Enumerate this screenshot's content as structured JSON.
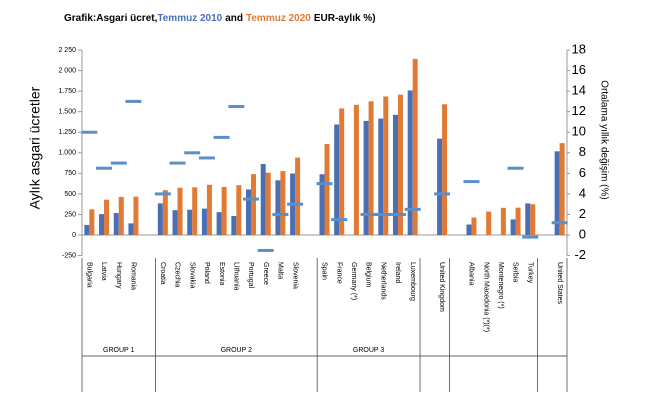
{
  "chart_data": {
    "type": "bar",
    "title_start": "Grafik:Asgari ücret,",
    "title_join": "and",
    "title_end": "EUR-aylık %)",
    "y_label": "Aylık asgari ücretler",
    "y2_label": "Ortalama yıllık değişim (%)",
    "categories": [
      "Bulgaria",
      "Latvia",
      "Hungary",
      "Romania",
      null,
      "Croatia",
      "Czechia",
      "Slovakia",
      "Poland",
      "Estonia",
      "Lithuania",
      "Portugal",
      "Greece",
      "Malta",
      "Slovenia",
      null,
      "Spain",
      "France",
      "Germany (*)",
      "Belgium",
      "Netherlands",
      "Ireland",
      "Luxembourg",
      null,
      "United Kingdom",
      null,
      "Albania",
      "North Macedonia (*)(*)",
      "Montenegro (*)",
      "Serbia",
      "Turkey",
      null,
      "United States"
    ],
    "groups": [
      "GROUP 1",
      "GROUP 2",
      "GROUP 3"
    ],
    "series": [
      {
        "name": "Temmuz 2010",
        "color": "#4a6fb5",
        "style": "bar",
        "values": [
          123,
          254,
          268,
          142,
          null,
          385,
          302,
          308,
          321,
          278,
          232,
          554,
          863,
          665,
          748,
          null,
          739,
          1344,
          null,
          1388,
          1416,
          1462,
          1758,
          null,
          1172,
          null,
          128,
          null,
          null,
          190,
          385,
          null,
          1018
        ]
      },
      {
        "name": "Temmuz 2020",
        "color": "#e07a35",
        "style": "bar",
        "values": [
          312,
          430,
          464,
          466,
          null,
          546,
          575,
          580,
          611,
          584,
          607,
          741,
          758,
          777,
          941,
          null,
          1108,
          1539,
          1584,
          1626,
          1685,
          1707,
          2142,
          null,
          1590,
          null,
          213,
          286,
          331,
          333,
          375,
          null,
          1118
        ]
      },
      {
        "color": "#5b8fc9",
        "style": "dash",
        "axis": "y2",
        "values": [
          10,
          6.5,
          7,
          13,
          null,
          4,
          7,
          8,
          7.5,
          9.5,
          12.5,
          3.5,
          -1.5,
          2,
          3,
          null,
          5,
          1.5,
          null,
          2,
          2,
          2,
          2.5,
          null,
          4,
          null,
          5.2,
          null,
          null,
          6.5,
          -0.2,
          null,
          1.2
        ]
      }
    ],
    "ylim": [
      -250,
      2250
    ],
    "yticks": [
      {
        "value": -250,
        "label": "-250"
      },
      0,
      250,
      500,
      750,
      {
        "value": 1000,
        "label": "1.000"
      },
      {
        "value": 1250,
        "label": "1.250"
      },
      {
        "value": 1500,
        "label": "1.500"
      },
      {
        "value": 1750,
        "label": "1.750"
      },
      {
        "value": 2000,
        "label": "2 000"
      },
      {
        "value": 2250,
        "label": "2 250"
      }
    ],
    "y2lim": [
      -2,
      18
    ],
    "y2ticks": [
      -2,
      0,
      2,
      4,
      6,
      8,
      10,
      12,
      14,
      16,
      18
    ],
    "grid": false
  }
}
